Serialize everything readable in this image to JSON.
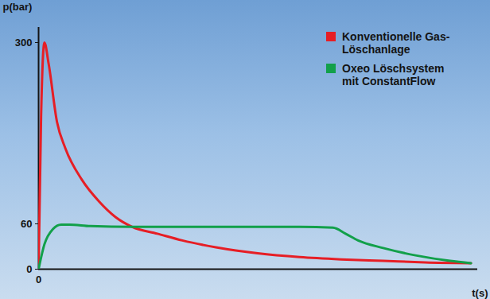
{
  "chart_data": {
    "type": "line",
    "series": [
      {
        "name": "Konventionelle Gas-Löschanlage",
        "color": "#e61e25",
        "x": [
          0,
          0.6,
          1.4,
          2.4,
          4.4,
          6.4,
          10.4,
          14.4,
          18.4,
          22.4,
          28.4,
          34.4,
          42.4,
          52.4,
          62.4,
          72.4,
          82.4,
          92.4,
          103.4
        ],
        "values": [
          0,
          202,
          300,
          272,
          195,
          160,
          118,
          90,
          69,
          56,
          47,
          38,
          29,
          21,
          16,
          13,
          11,
          9,
          8
        ]
      },
      {
        "name": "Oxeo Löschsystem mit ConstantFlow",
        "color": "#12a04a",
        "x": [
          0,
          1.4,
          3.4,
          5.4,
          7.4,
          12.4,
          22.4,
          42.4,
          62.4,
          70.4,
          73.4,
          76.4,
          82.4,
          90.4,
          98.4,
          103.4
        ],
        "values": [
          0,
          33,
          53,
          59,
          59,
          57,
          56,
          56,
          56,
          55,
          47,
          38,
          28,
          18,
          11,
          8
        ]
      }
    ],
    "x_label": "t(s)",
    "y_label": "p(bar)",
    "xlim": [
      0,
      105
    ],
    "xticks": [
      0
    ],
    "ylim": [
      0,
      320
    ],
    "yticks": [
      0,
      60,
      300
    ],
    "grid": false,
    "legend": "top-right"
  }
}
